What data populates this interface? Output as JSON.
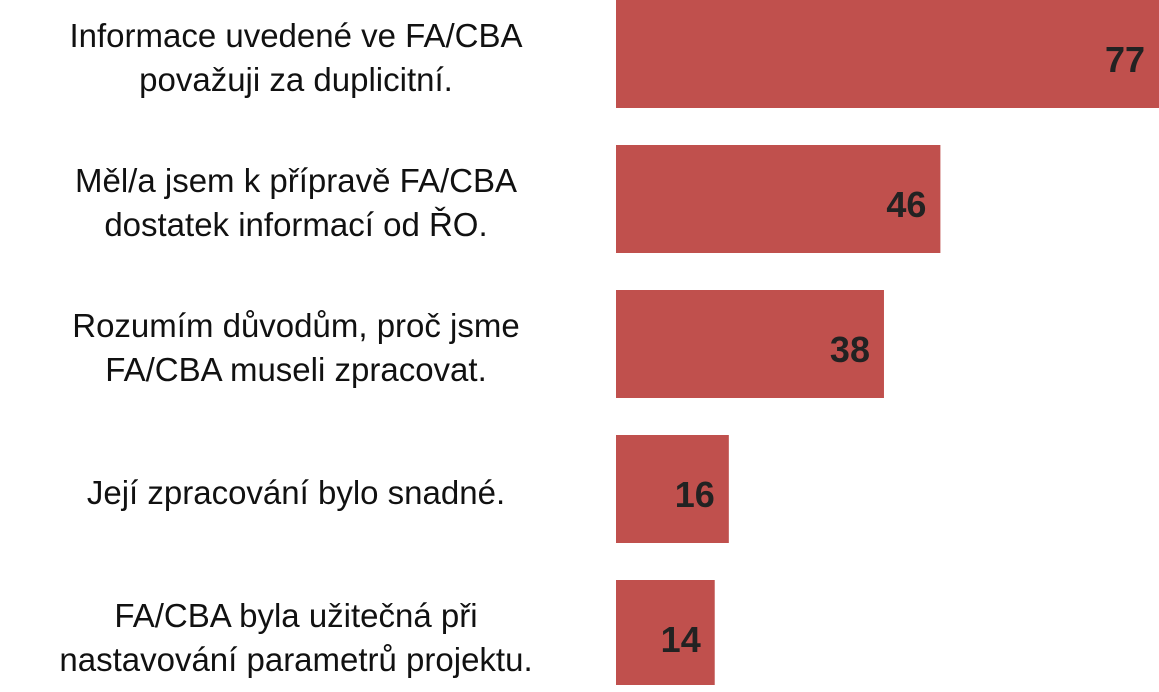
{
  "chart_data": {
    "type": "bar",
    "orientation": "horizontal",
    "categories": [
      "Informace uvedené ve FA/CBA\npovažuji za duplicitní.",
      "Měl/a jsem k přípravě FA/CBA\ndostatek informací od ŘO.",
      "Rozumím důvodům, proč jsme\nFA/CBA museli zpracovat.",
      "Její zpracování bylo snadné.",
      "FA/CBA byla užitečná při\nnastavování parametrů projektu."
    ],
    "values": [
      77,
      46,
      38,
      16,
      14
    ],
    "color": "#c0504d"
  }
}
